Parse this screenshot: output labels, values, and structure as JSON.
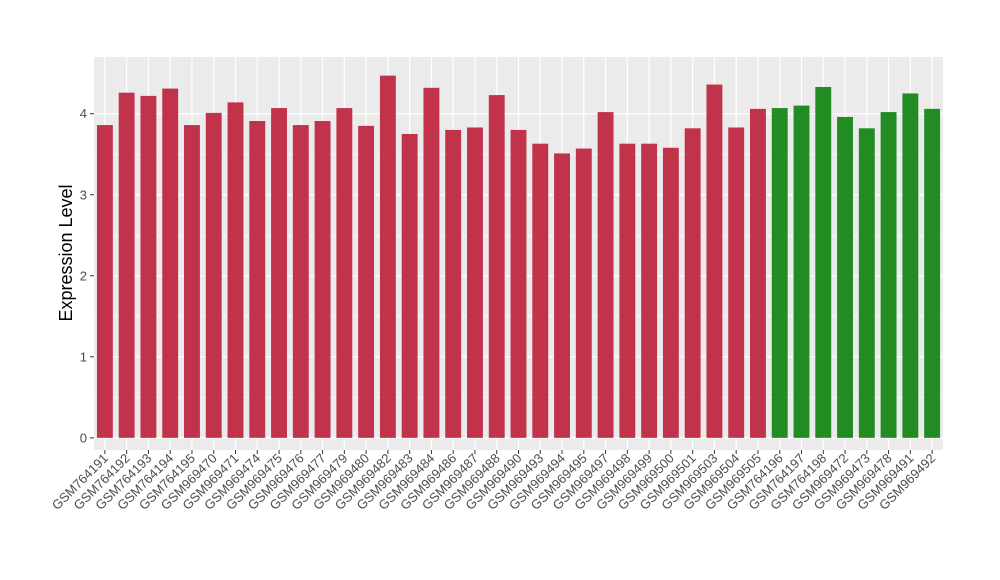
{
  "chart_data": {
    "type": "bar",
    "title": "",
    "xlabel": "",
    "ylabel": "Expression Level",
    "ylim": [
      -0.15,
      4.7
    ],
    "y_ticks": [
      0,
      1,
      2,
      3,
      4
    ],
    "grid": true,
    "panel_background": "#ebebeb",
    "grid_color": "#ffffff",
    "legend": "none",
    "categories": [
      "GSM764191",
      "GSM764192",
      "GSM764193",
      "GSM764194",
      "GSM764195",
      "GSM969470",
      "GSM969471",
      "GSM969474",
      "GSM969475",
      "GSM969476",
      "GSM969477",
      "GSM969479",
      "GSM969480",
      "GSM969482",
      "GSM969483",
      "GSM969484",
      "GSM969486",
      "GSM969487",
      "GSM969488",
      "GSM969490",
      "GSM969493",
      "GSM969494",
      "GSM969495",
      "GSM969497",
      "GSM969498",
      "GSM969499",
      "GSM969500",
      "GSM969501",
      "GSM969503",
      "GSM969504",
      "GSM969505",
      "GSM764196",
      "GSM764197",
      "GSM764198",
      "GSM969472",
      "GSM969473",
      "GSM969478",
      "GSM969491",
      "GSM969492"
    ],
    "values": [
      3.86,
      4.26,
      4.22,
      4.31,
      3.86,
      4.01,
      4.14,
      3.91,
      4.07,
      3.86,
      3.91,
      4.07,
      3.85,
      4.47,
      3.75,
      4.32,
      3.8,
      3.83,
      4.23,
      3.8,
      3.63,
      3.51,
      3.57,
      4.02,
      3.63,
      3.63,
      3.58,
      3.82,
      4.36,
      3.83,
      4.06,
      4.07,
      4.1,
      4.33,
      3.96,
      3.82,
      4.02,
      4.25,
      4.06
    ],
    "colors": [
      "#c0334a",
      "#c0334a",
      "#c0334a",
      "#c0334a",
      "#c0334a",
      "#c0334a",
      "#c0334a",
      "#c0334a",
      "#c0334a",
      "#c0334a",
      "#c0334a",
      "#c0334a",
      "#c0334a",
      "#c0334a",
      "#c0334a",
      "#c0334a",
      "#c0334a",
      "#c0334a",
      "#c0334a",
      "#c0334a",
      "#c0334a",
      "#c0334a",
      "#c0334a",
      "#c0334a",
      "#c0334a",
      "#c0334a",
      "#c0334a",
      "#c0334a",
      "#c0334a",
      "#c0334a",
      "#c0334a",
      "#228b22",
      "#228b22",
      "#228b22",
      "#228b22",
      "#228b22",
      "#228b22",
      "#228b22",
      "#228b22"
    ]
  }
}
